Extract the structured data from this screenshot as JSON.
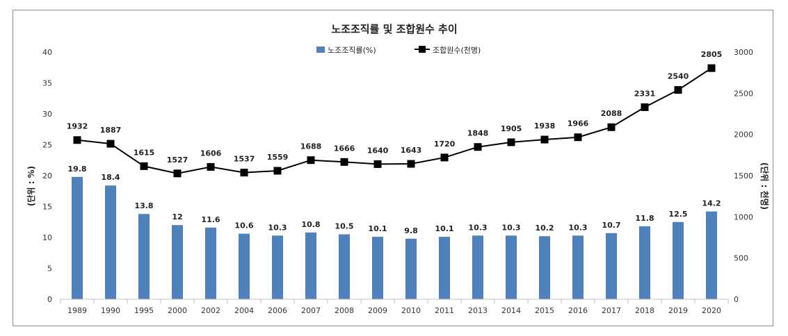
{
  "chart_data": {
    "type": "bar+line",
    "title": "노조조직률 및 조합원수 추이",
    "categories": [
      "1989",
      "1990",
      "1995",
      "2000",
      "2002",
      "2004",
      "2006",
      "2007",
      "2008",
      "2009",
      "2010",
      "2011",
      "2013",
      "2014",
      "2015",
      "2016",
      "2017",
      "2018",
      "2019",
      "2020"
    ],
    "series": [
      {
        "name": "노조조직률(%)",
        "type": "bar",
        "axis": "left",
        "color": "#4f81bd",
        "values": [
          19.8,
          18.4,
          13.8,
          12,
          11.6,
          10.6,
          10.3,
          10.8,
          10.5,
          10.1,
          9.8,
          10.1,
          10.3,
          10.3,
          10.2,
          10.3,
          10.7,
          11.8,
          12.5,
          14.2
        ]
      },
      {
        "name": "조합원수(천명)",
        "type": "line",
        "axis": "right",
        "color": "#000000",
        "marker": "square",
        "values": [
          1932,
          1887,
          1615,
          1527,
          1606,
          1537,
          1559,
          1688,
          1666,
          1640,
          1643,
          1720,
          1848,
          1905,
          1938,
          1966,
          2088,
          2331,
          2540,
          2805
        ]
      }
    ],
    "y_left": {
      "label": "(단위 : %)",
      "min": 0,
      "max": 40,
      "ticks": [
        0,
        5,
        10,
        15,
        20,
        25,
        30,
        35,
        40
      ]
    },
    "y_right": {
      "label": "(단위 : 천명)",
      "min": 0,
      "max": 3000,
      "ticks": [
        0,
        500,
        1000,
        1500,
        2000,
        2500,
        3000
      ]
    },
    "legend_position": "top-center",
    "grid": false
  }
}
